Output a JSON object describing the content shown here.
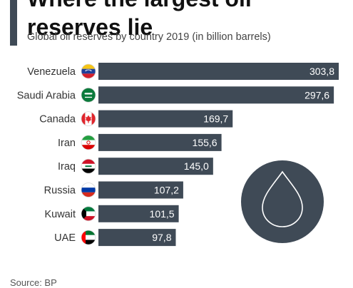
{
  "header": {
    "title_lines": [
      "Where the largest oil",
      "reserves lie"
    ],
    "subtitle": "Global oil reserves by country 2019 (in billion barrels)"
  },
  "footer": {
    "source": "Source: BP"
  },
  "colors": {
    "bar": "#3f4a56",
    "accent": "#3f4a56",
    "value_text": "#ffffff",
    "drop_circle": "#3f4a56"
  },
  "decoration": {
    "icon": "oil-drop-icon"
  },
  "chart_data": {
    "type": "bar",
    "orientation": "horizontal",
    "title": "Where the largest oil reserves lie",
    "subtitle": "Global oil reserves by country 2019 (in billion barrels)",
    "categories": [
      "Venezuela",
      "Saudi Arabia",
      "Canada",
      "Iran",
      "Iraq",
      "Russia",
      "Kuwait",
      "UAE"
    ],
    "values": [
      303.8,
      297.6,
      169.7,
      155.6,
      145.0,
      107.2,
      101.5,
      97.8
    ],
    "value_labels": [
      "303,8",
      "297,6",
      "169,7",
      "155,6",
      "145,0",
      "107,2",
      "101,5",
      "97,8"
    ],
    "flags": [
      "venezuela-flag-icon",
      "saudi-arabia-flag-icon",
      "canada-flag-icon",
      "iran-flag-icon",
      "iraq-flag-icon",
      "russia-flag-icon",
      "kuwait-flag-icon",
      "uae-flag-icon"
    ],
    "xlim": [
      0,
      303.8
    ],
    "grid": false,
    "legend": "none"
  }
}
